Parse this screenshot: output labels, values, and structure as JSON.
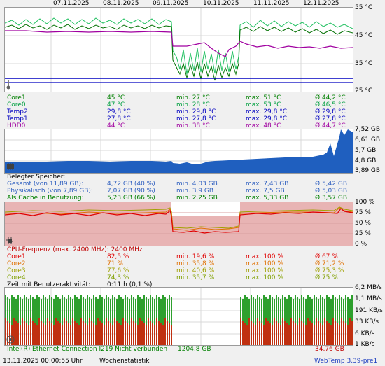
{
  "window_title": "WebTemp",
  "dates": [
    "07.11.2025",
    "08.11.2025",
    "09.11.2025",
    "10.11.2025",
    "11.11.2025",
    "12.11.2025"
  ],
  "temp_axis": [
    "55 °C",
    "45 °C",
    "35 °C",
    "25 °C"
  ],
  "temp_rows": [
    {
      "name": "Core1",
      "cur": "45 °C",
      "min": "min. 27 °C",
      "max": "max. 51 °C",
      "avg": "Ø 44,2 °C",
      "color": "#008000"
    },
    {
      "name": "Core0",
      "cur": "47 °C",
      "min": "min. 28 °C",
      "max": "max. 53 °C",
      "avg": "Ø 46,5 °C",
      "color": "#00b050"
    },
    {
      "name": "Temp2",
      "cur": "29,8 °C",
      "min": "min. 29,8 °C",
      "max": "max. 29,8 °C",
      "avg": "Ø 29,8 °C",
      "color": "#0000c0"
    },
    {
      "name": "Temp1",
      "cur": "27,8 °C",
      "min": "min. 27,8 °C",
      "max": "max. 29,8 °C",
      "avg": "Ø 27,8 °C",
      "color": "#0000c0"
    },
    {
      "name": "HDD0",
      "cur": "44 °C",
      "min": "min. 38 °C",
      "max": "max. 48 °C",
      "avg": "Ø 44,7 °C",
      "color": "#a000a0"
    }
  ],
  "mem_axis": [
    "7,52 GB",
    "6,61 GB",
    "5,7 GB",
    "4,8 GB",
    "3,89 GB"
  ],
  "mem_header": "Belegter Speicher:",
  "mem_rows": [
    {
      "name": "Gesamt (von 11,89 GB):",
      "cur": "4,72 GB (40 %)",
      "min": "min. 4,03 GB",
      "max": "max. 7,43 GB",
      "avg": "Ø 5,42 GB",
      "color": "#3060c0"
    },
    {
      "name": "Physikalisch (von 7,89 GB):",
      "cur": "7,07 GB (90 %)",
      "min": "min. 3,9 GB",
      "max": "max. 7,5 GB",
      "avg": "Ø 5,03 GB",
      "color": "#3060c0"
    },
    {
      "name": "Als Cache in Benutzung:",
      "cur": "5,23 GB (66 %)",
      "min": "min. 2,25 GB",
      "max": "max. 5,33 GB",
      "avg": "Ø 3,57 GB",
      "color": "#008000"
    }
  ],
  "cpu_axis": [
    "100 %",
    "75 %",
    "50 %",
    "25 %",
    "0 %"
  ],
  "cpu_header": "CPU-Frequenz (max. 2400 MHz): 2400 MHz",
  "cpu_rows": [
    {
      "name": "Core1",
      "cur": "82,5 %",
      "min": "min. 19,6 %",
      "max": "max. 100 %",
      "avg": "Ø 67 %",
      "color": "#e00000"
    },
    {
      "name": "Core2",
      "cur": "71 %",
      "min": "min. 35,8 %",
      "max": "max. 100 %",
      "avg": "Ø 71,2 %",
      "color": "#e07000"
    },
    {
      "name": "Core3",
      "cur": "77,6 %",
      "min": "min. 40,6 %",
      "max": "max. 100 %",
      "avg": "Ø 75,3 %",
      "color": "#a0a000"
    },
    {
      "name": "Core4",
      "cur": "74,3 %",
      "min": "min. 35,7 %",
      "max": "max. 100 %",
      "avg": "Ø 75 %",
      "color": "#80a000"
    }
  ],
  "cpu_activity_label": "Zeit mit Benutzeraktivität:",
  "cpu_activity_value": "0:11 h (0,1 %)",
  "net_axis": [
    "6,2 MB/s",
    "1,1 MB/s",
    "191 KB/s",
    "33 KB/s",
    "6 KB/s",
    "1 KB/s"
  ],
  "net_row": {
    "name": "Intel(R) Ethernet Connection I219  Nicht verbunden",
    "rx": "1204,8 GB",
    "tx": "34,76 GB"
  },
  "footer": {
    "timestamp": "13.11.2025 00:00:55 Uhr",
    "view": "Wochenstatistik",
    "version": "WebTemp 3.39-pre1"
  },
  "colors": {
    "core1": "#008000",
    "core0": "#00b050",
    "temp": "#0000c0",
    "hdd": "#a000a0",
    "mem": "#1f5fbf",
    "cpu_bg": "#e8b0b0",
    "cpu_core1": "#e00000",
    "cpu_core2": "#e07000",
    "cpu_core3": "#a0a000",
    "net_green": "#2ea02e",
    "net_red": "#c03010"
  }
}
